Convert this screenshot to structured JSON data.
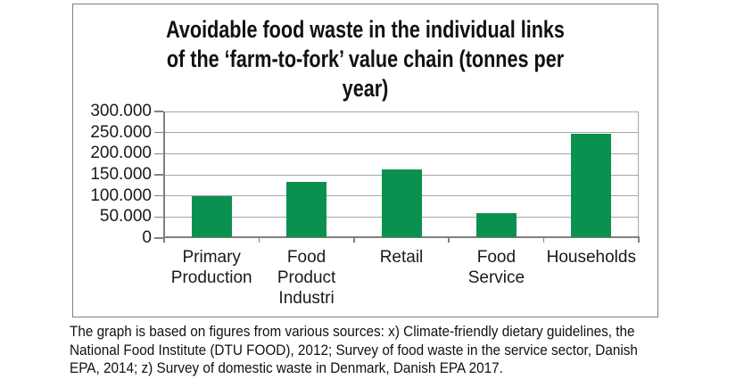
{
  "page": {
    "background": "#ffffff"
  },
  "chart_frame": {
    "border_color": "#808080"
  },
  "chart_data": {
    "type": "bar",
    "title": "Avoidable food waste in the individual links of the ‘farm-to-fork’ value chain (tonnes per year)",
    "title_lines": "Avoidable food waste in the individual links\nof the ‘farm-to-fork’ value chain (tonnes per\nyear)",
    "categories": [
      "Primary Production",
      "Food Product Industri",
      "Retail",
      "Food Service",
      "Households"
    ],
    "category_label_lines": [
      "Primary\nProduction",
      "Food\nProduct\nIndustri",
      "Retail",
      "Food\nService",
      "Households"
    ],
    "values": [
      100000,
      133000,
      163000,
      60000,
      247000
    ],
    "xlabel": "",
    "ylabel": "",
    "unit": "tonnes per year",
    "ylim": [
      0,
      300000
    ],
    "ytick_values": [
      300000,
      250000,
      200000,
      150000,
      100000,
      50000,
      0
    ],
    "ytick_labels": [
      "300.000",
      "250.000",
      "200.000",
      "150.000",
      "100.000",
      "50.000",
      "0"
    ],
    "bar_color": "#0a9150",
    "grid_color": "#a6a6a6",
    "axis_color": "#808080",
    "grid": true,
    "legend": false
  },
  "caption": {
    "text": "The graph is based on figures from various sources: x) Climate-friendly dietary guidelines, the National Food Institute (DTU FOOD), 2012; Survey of food waste in the service sector, Danish EPA, 2014; z) Survey of domestic waste in Denmark, Danish EPA 2017.",
    "lines": "The graph is based on figures from various sources: x) Climate-friendly dietary guidelines, the\nNational Food Institute (DTU FOOD), 2012; Survey of food waste in the service sector, Danish\nEPA, 2014; z) Survey of domestic waste in Denmark, Danish EPA 2017."
  }
}
